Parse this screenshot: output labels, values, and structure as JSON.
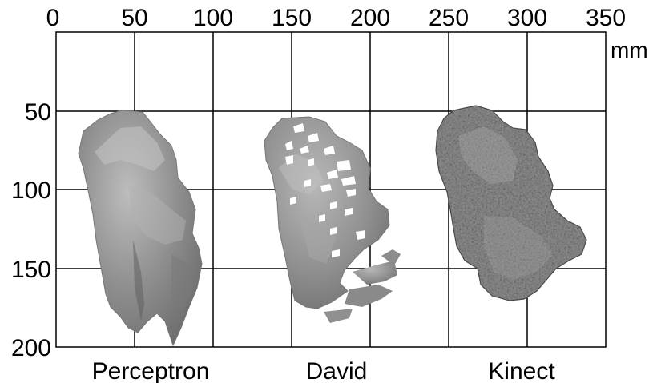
{
  "figure": {
    "x_axis": {
      "ticks": [
        "0",
        "50",
        "100",
        "150",
        "200",
        "250",
        "300",
        "350"
      ],
      "unit": "mm"
    },
    "y_axis": {
      "ticks": [
        "50",
        "100",
        "150",
        "200"
      ]
    },
    "scans": [
      {
        "label": "Perceptron",
        "style": "smooth-surface-scan"
      },
      {
        "label": "David",
        "style": "surface-scan-with-holes"
      },
      {
        "label": "Kinect",
        "style": "rough-textured-surface-scan"
      }
    ],
    "colors": {
      "grid": "#000000",
      "scan_fill": "#8f8f8f",
      "background": "#ffffff"
    }
  }
}
